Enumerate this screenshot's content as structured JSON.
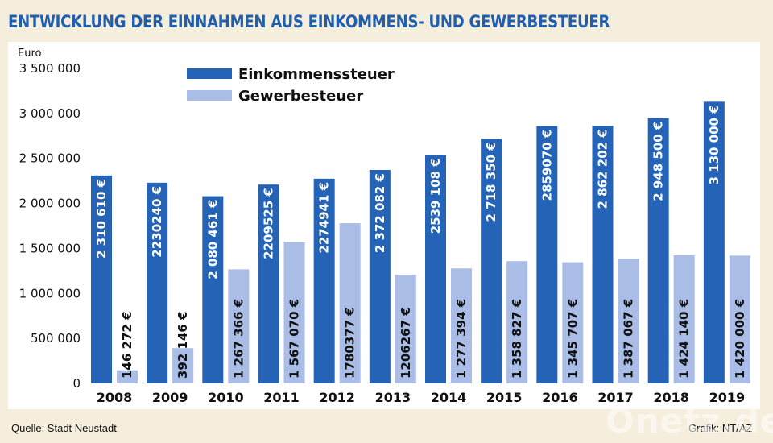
{
  "title": "ENTWICKLUNG DER EINNAHMEN AUS EINKOMMENS- UND GEWERBESTEUER",
  "source": "Quelle: Stadt Neustadt",
  "credit": "Grafik: NT/AZ",
  "watermark": "Onetz.de",
  "chart_data": {
    "type": "bar",
    "ylabel": "Euro",
    "ylim": [
      0,
      3500000
    ],
    "yticks": [
      0,
      500000,
      1000000,
      1500000,
      2000000,
      2500000,
      3000000,
      3500000
    ],
    "ytick_labels": [
      "0",
      "500 000",
      "1 000 000",
      "1 500 000",
      "2 000 000",
      "2 500 000",
      "3 000 000",
      "3 500 000"
    ],
    "grid": false,
    "legend_position": "top-left",
    "categories": [
      "2008",
      "2009",
      "2010",
      "2011",
      "2012",
      "2013",
      "2014",
      "2015",
      "2016",
      "2017",
      "2018",
      "2019"
    ],
    "series": [
      {
        "name": "Einkommenssteuer",
        "color": "#2563b6",
        "values": [
          2310610,
          2230240,
          2080461,
          2209525,
          2274941,
          2372082,
          2539108,
          2718350,
          2859070,
          2862202,
          2948500,
          3130000
        ],
        "labels": [
          "2 310 610 €",
          "2230240 €",
          "2 080 461 €",
          "2209525 €",
          "2274941 €",
          "2 372 082 €",
          "2539 108 €",
          "2 718 350 €",
          "2859070 €",
          "2 862 202 €",
          "2 948 500 €",
          "3 130 000 €"
        ]
      },
      {
        "name": "Gewerbesteuer",
        "color": "#a9bde6",
        "values": [
          146272,
          392146,
          1267366,
          1567070,
          1780377,
          1206267,
          1277394,
          1358827,
          1345707,
          1387067,
          1424140,
          1420000
        ],
        "labels": [
          "146 272 €",
          "392 146 €",
          "1 267 366 €",
          "1 567 070 €",
          "1780377 €",
          "1206267 €",
          "1 277 394 €",
          "1 358 827 €",
          "1 345 707 €",
          "1 387 067 €",
          "1 424 140 €",
          "1 420 000 €"
        ]
      }
    ]
  }
}
